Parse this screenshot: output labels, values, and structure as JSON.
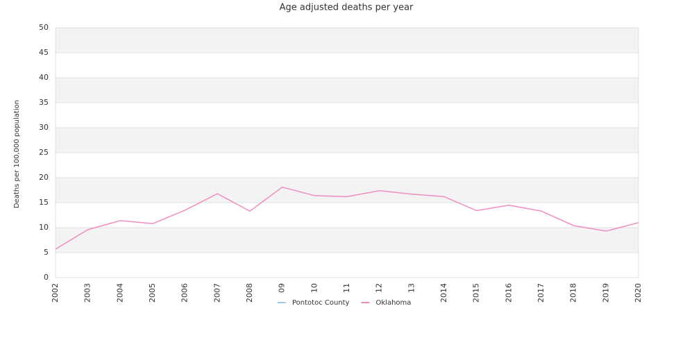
{
  "chart_data": {
    "type": "line",
    "title": "Age adjusted deaths per year",
    "y_label": "Deaths per 100,000 population",
    "categories": [
      "2002",
      "2003",
      "2004",
      "2005",
      "2006",
      "2007",
      "2008",
      "09",
      "10",
      "11",
      "12",
      "13",
      "2014",
      "2015",
      "2016",
      "2017",
      "2018",
      "2019",
      "2020"
    ],
    "series": [
      {
        "name": "Pontotoc County",
        "color": "#9ec9ea",
        "values": [
          null,
          null,
          null,
          null,
          null,
          null,
          null,
          null,
          null,
          null,
          null,
          null,
          null,
          null,
          null,
          null,
          null,
          null,
          null
        ]
      },
      {
        "name": "Oklahoma",
        "color": "#f08cc0",
        "values": [
          5.7,
          9.6,
          11.4,
          10.8,
          13.5,
          16.8,
          13.3,
          18.1,
          16.4,
          16.2,
          17.4,
          16.7,
          16.2,
          13.4,
          14.5,
          13.3,
          10.4,
          9.3,
          11.0
        ]
      }
    ],
    "ylim": [
      0,
      50
    ],
    "yticks": [
      0,
      5,
      10,
      15,
      20,
      25,
      30,
      35,
      40,
      45,
      50
    ],
    "grid": true,
    "legend": "bottom"
  }
}
